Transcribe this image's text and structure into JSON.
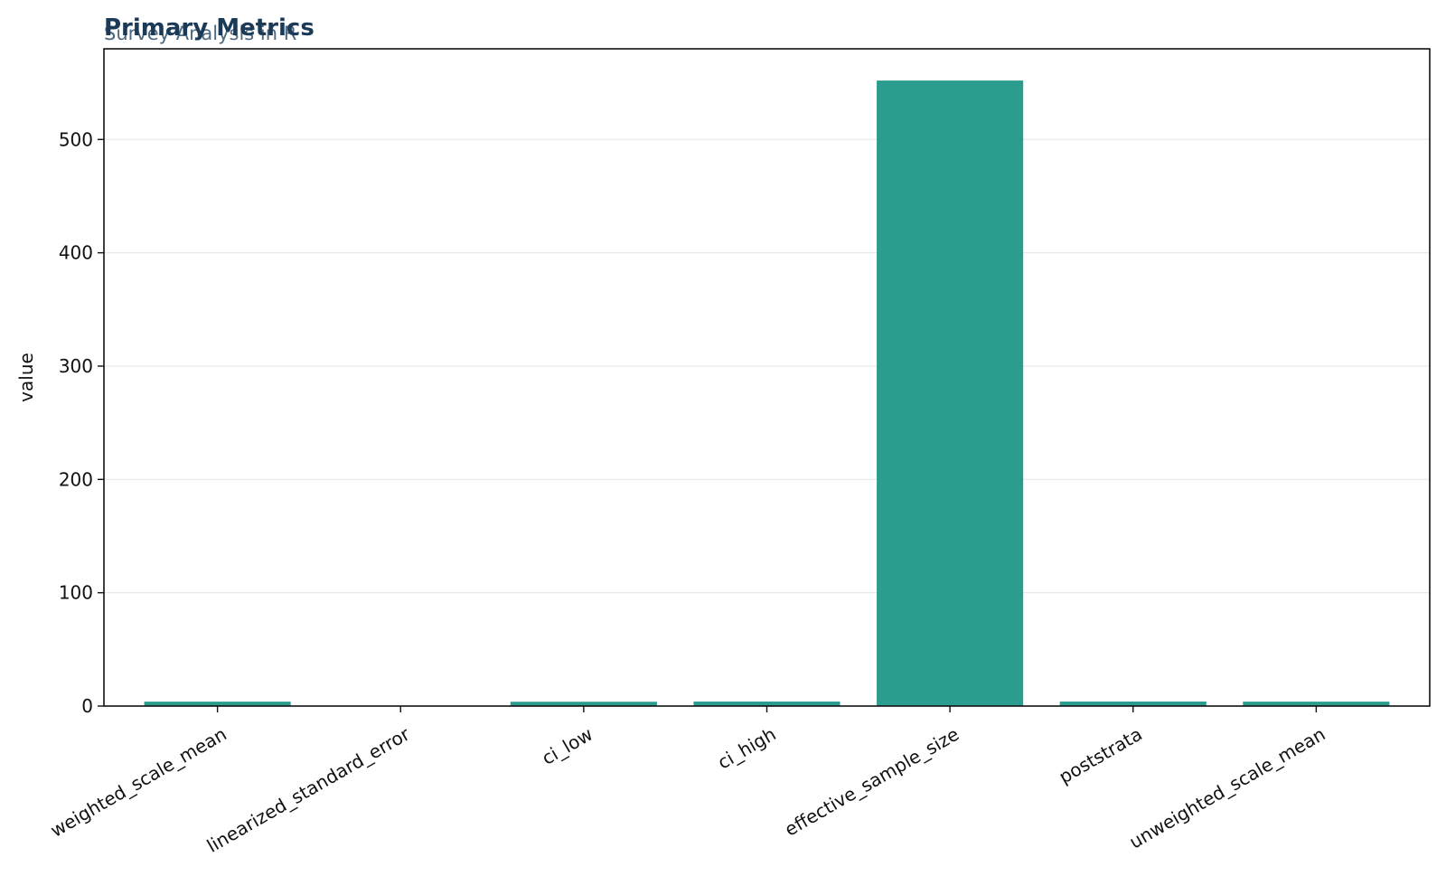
{
  "chart_data": {
    "type": "bar",
    "title": "Primary Metrics",
    "subtitle": "Survey Analysis in R",
    "ylabel": "value",
    "xlabel": "",
    "categories": [
      "weighted_scale_mean",
      "linearized_standard_error",
      "ci_low",
      "ci_high",
      "effective_sample_size",
      "poststrata",
      "unweighted_scale_mean"
    ],
    "values": [
      3.9,
      0.05,
      3.8,
      4.0,
      552,
      4,
      3.9
    ],
    "ylim": [
      0,
      580
    ],
    "yticks": [
      0,
      100,
      200,
      300,
      400,
      500
    ],
    "grid": true,
    "colors": {
      "bar": "#2a9d8f",
      "title": "#1b3a57",
      "subtitle": "#4f6a80"
    }
  }
}
